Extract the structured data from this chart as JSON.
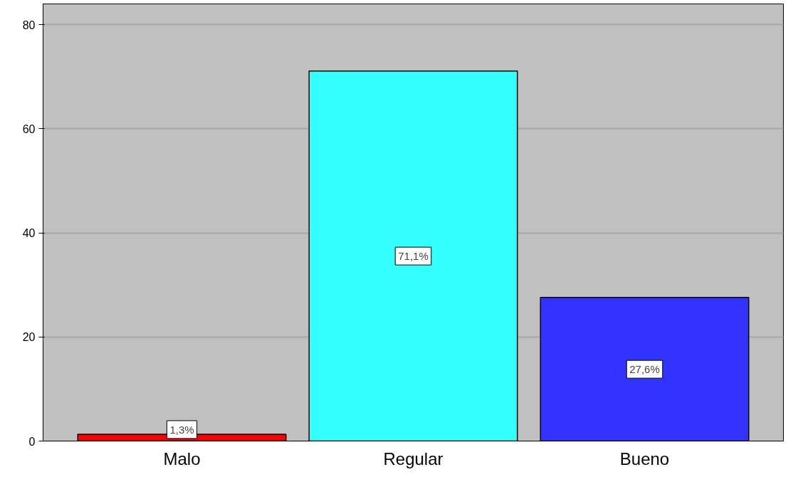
{
  "chart_data": {
    "type": "bar",
    "categories": [
      "Malo",
      "Regular",
      "Bueno"
    ],
    "values": [
      1.3,
      71.1,
      27.6
    ],
    "colors": [
      "#ff0000",
      "#33ffff",
      "#3333ff"
    ],
    "value_labels": [
      "1,3%",
      "71,1%",
      "27,6%"
    ],
    "ylim": [
      0,
      84
    ],
    "yticks": [
      0,
      20,
      40,
      60,
      80
    ],
    "grid": "y"
  }
}
